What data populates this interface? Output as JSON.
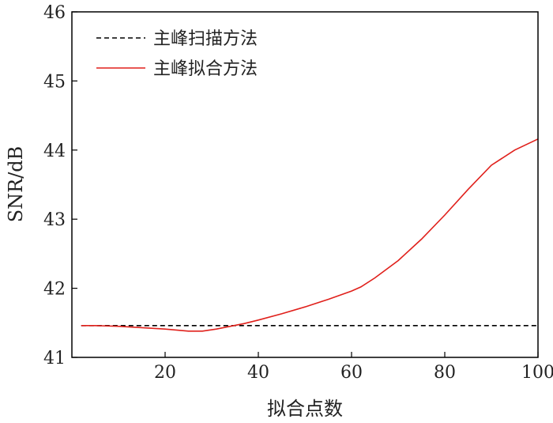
{
  "chart_data": {
    "type": "line",
    "xlabel": "拟合点数",
    "ylabel": "SNR/dB",
    "xlim": [
      0,
      100
    ],
    "ylim": [
      41,
      46
    ],
    "xticks": [
      "20",
      "40",
      "60",
      "80",
      "100"
    ],
    "yticks": [
      "41",
      "42",
      "43",
      "44",
      "45",
      "46"
    ],
    "xtick_values": [
      20,
      40,
      60,
      80,
      100
    ],
    "ytick_values": [
      41,
      42,
      43,
      44,
      45,
      46
    ],
    "grid": false,
    "legend_position": "top-left",
    "series": [
      {
        "name": "主峰扫描方法",
        "color": "#000000",
        "style": "dashed",
        "x": [
          2,
          100
        ],
        "y": [
          41.46,
          41.46
        ]
      },
      {
        "name": "主峰拟合方法",
        "color": "#e0201b",
        "style": "solid",
        "x": [
          2,
          5,
          10,
          15,
          20,
          25,
          28,
          31,
          34,
          37,
          40,
          45,
          50,
          55,
          60,
          62,
          65,
          70,
          75,
          80,
          85,
          90,
          95,
          100
        ],
        "y": [
          41.46,
          41.46,
          41.45,
          41.43,
          41.41,
          41.38,
          41.38,
          41.41,
          41.45,
          41.49,
          41.54,
          41.63,
          41.73,
          41.84,
          41.96,
          42.02,
          42.15,
          42.4,
          42.71,
          43.06,
          43.43,
          43.78,
          44.0,
          44.16
        ]
      }
    ]
  }
}
